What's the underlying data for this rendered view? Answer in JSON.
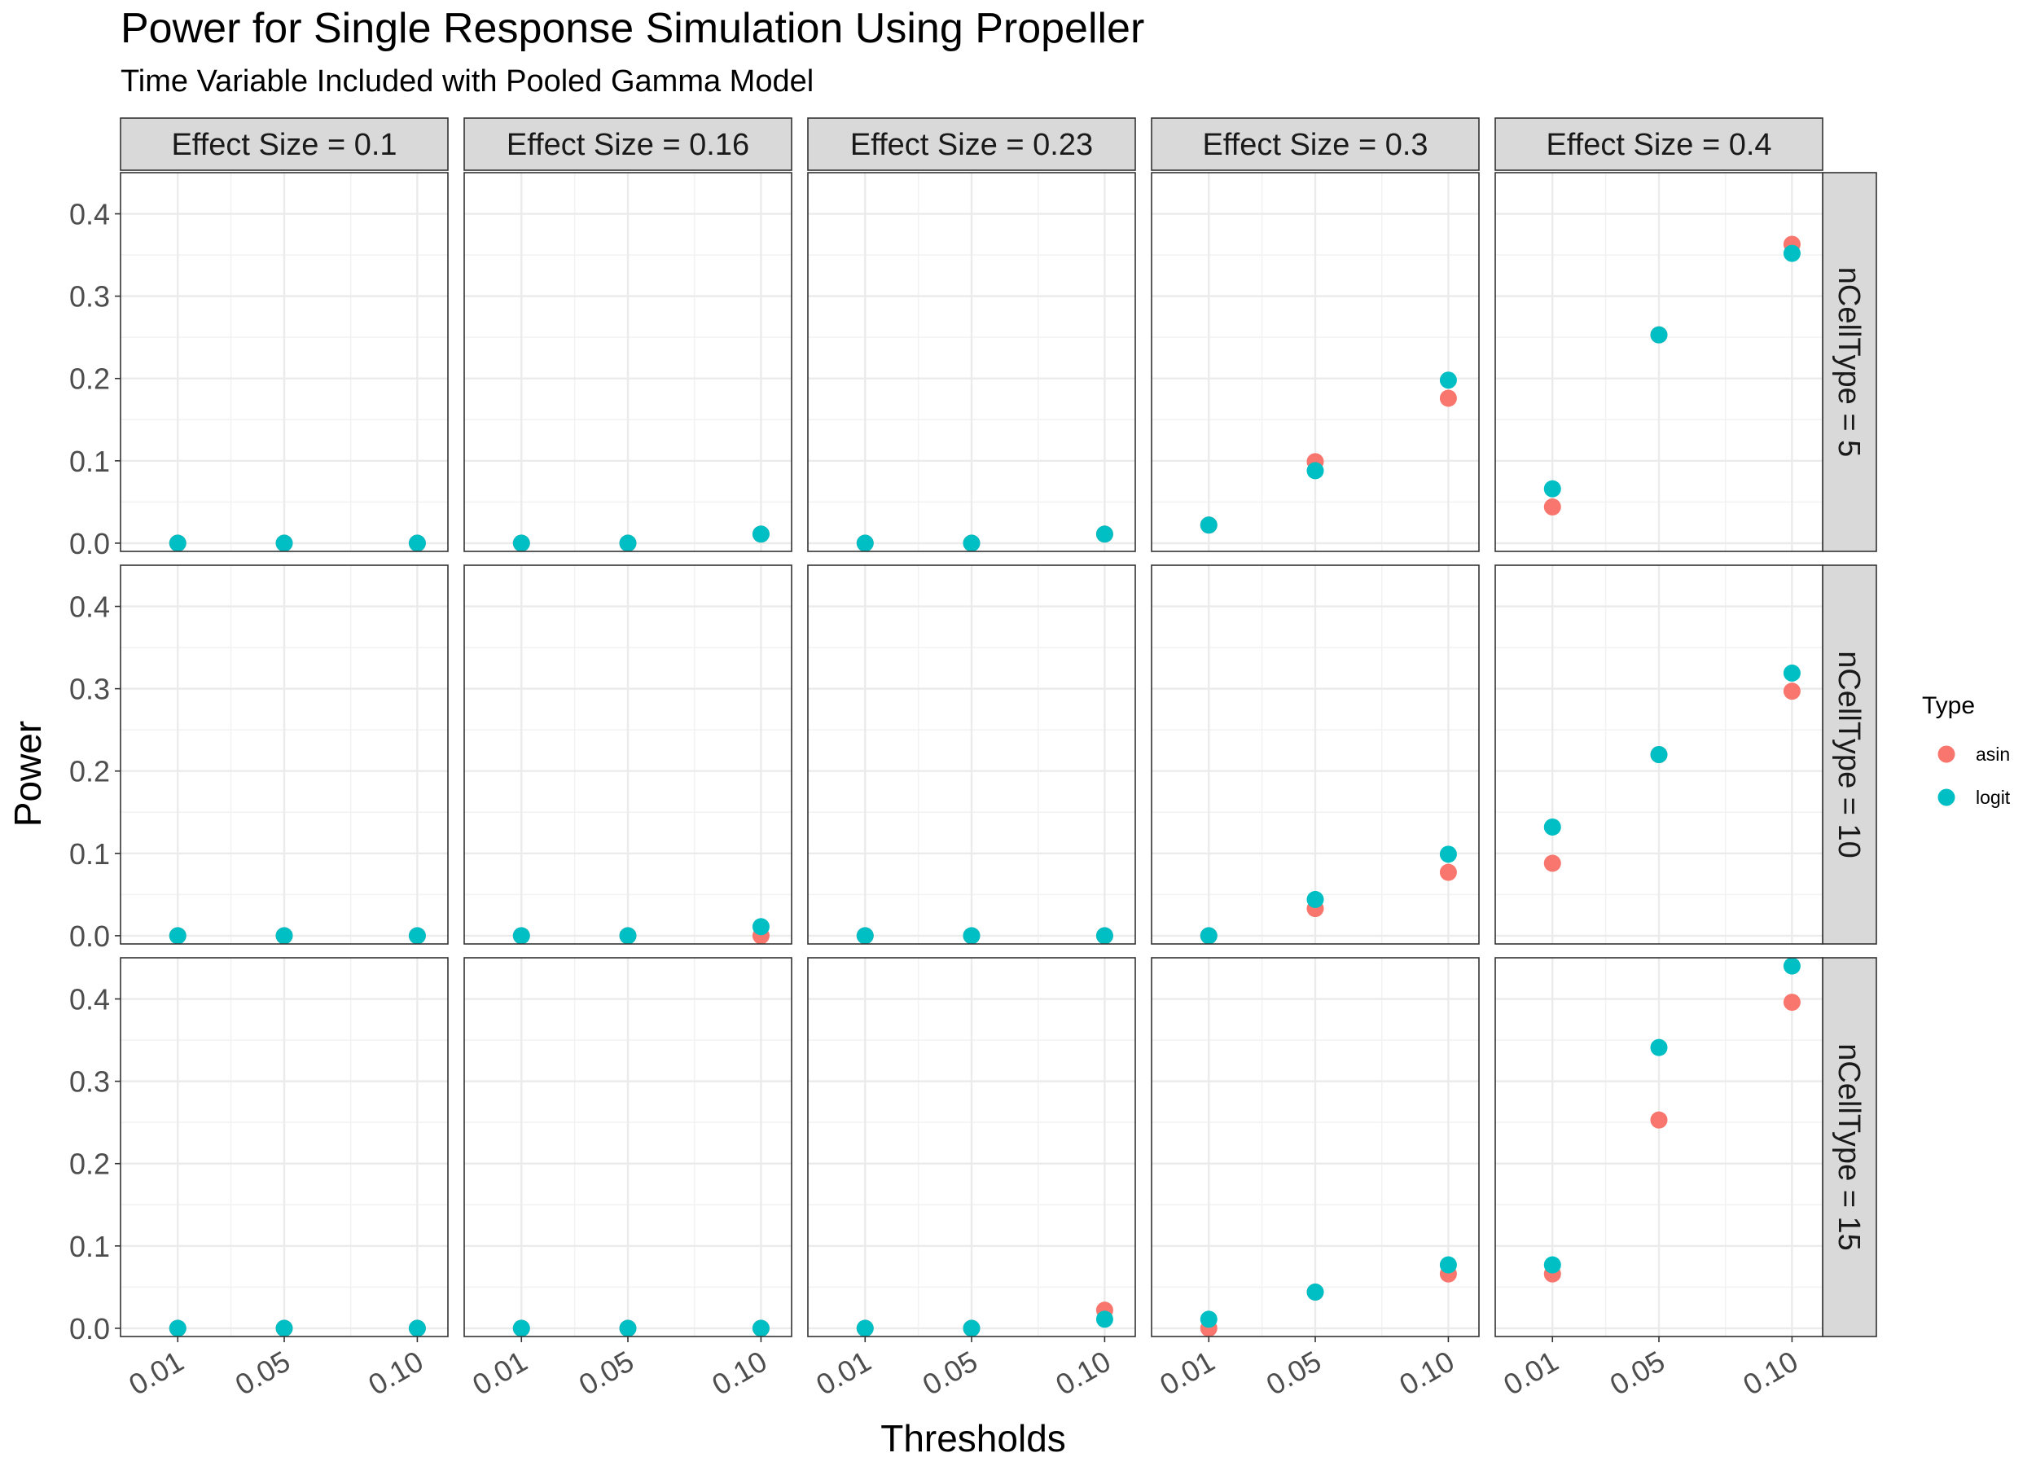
{
  "chart_data": {
    "type": "scatter",
    "title": "Power for Single Response Simulation Using Propeller",
    "subtitle": "Time Variable Included with Pooled Gamma Model",
    "xlabel": "Thresholds",
    "ylabel": "Power",
    "x_ticks": [
      "0.01",
      "0.05",
      "0.10"
    ],
    "x_values": [
      0.01,
      0.05,
      0.1
    ],
    "y_ticks": [
      "0.0",
      "0.1",
      "0.2",
      "0.3",
      "0.4"
    ],
    "ylim": [
      -0.01,
      0.45
    ],
    "grid": true,
    "legend": {
      "title": "Type",
      "position": "right",
      "items": [
        {
          "name": "asin",
          "color": "#F8766D"
        },
        {
          "name": "logit",
          "color": "#00BFC4"
        }
      ]
    },
    "facet_cols": [
      "Effect Size = 0.1",
      "Effect Size = 0.16",
      "Effect Size = 0.23",
      "Effect Size = 0.3",
      "Effect Size = 0.4"
    ],
    "facet_rows": [
      "nCellType = 5",
      "nCellType = 10",
      "nCellType = 15"
    ],
    "panels": [
      [
        {
          "asin": [
            0.0,
            0.0,
            0.0
          ],
          "logit": [
            0.0,
            0.0,
            0.0
          ]
        },
        {
          "asin": [
            0.0,
            0.0,
            0.011
          ],
          "logit": [
            0.0,
            0.0,
            0.011
          ]
        },
        {
          "asin": [
            0.0,
            0.0,
            0.011
          ],
          "logit": [
            0.0,
            0.0,
            0.011
          ]
        },
        {
          "asin": [
            0.022,
            0.099,
            0.176
          ],
          "logit": [
            0.022,
            0.088,
            0.198
          ]
        },
        {
          "asin": [
            0.044,
            0.253,
            0.363
          ],
          "logit": [
            0.066,
            0.253,
            0.352
          ]
        }
      ],
      [
        {
          "asin": [
            0.0,
            0.0,
            0.0
          ],
          "logit": [
            0.0,
            0.0,
            0.0
          ]
        },
        {
          "asin": [
            0.0,
            0.0,
            0.0
          ],
          "logit": [
            0.0,
            0.0,
            0.011
          ]
        },
        {
          "asin": [
            0.0,
            0.0,
            0.0
          ],
          "logit": [
            0.0,
            0.0,
            0.0
          ]
        },
        {
          "asin": [
            0.0,
            0.033,
            0.077
          ],
          "logit": [
            0.0,
            0.044,
            0.099
          ]
        },
        {
          "asin": [
            0.088,
            0.22,
            0.297
          ],
          "logit": [
            0.132,
            0.22,
            0.319
          ]
        }
      ],
      [
        {
          "asin": [
            0.0,
            0.0,
            0.0
          ],
          "logit": [
            0.0,
            0.0,
            0.0
          ]
        },
        {
          "asin": [
            0.0,
            0.0,
            0.0
          ],
          "logit": [
            0.0,
            0.0,
            0.0
          ]
        },
        {
          "asin": [
            0.0,
            0.0,
            0.022
          ],
          "logit": [
            0.0,
            0.0,
            0.011
          ]
        },
        {
          "asin": [
            0.0,
            0.044,
            0.066
          ],
          "logit": [
            0.011,
            0.044,
            0.077
          ]
        },
        {
          "asin": [
            0.066,
            0.253,
            0.396
          ],
          "logit": [
            0.077,
            0.341,
            0.44
          ]
        }
      ]
    ]
  }
}
